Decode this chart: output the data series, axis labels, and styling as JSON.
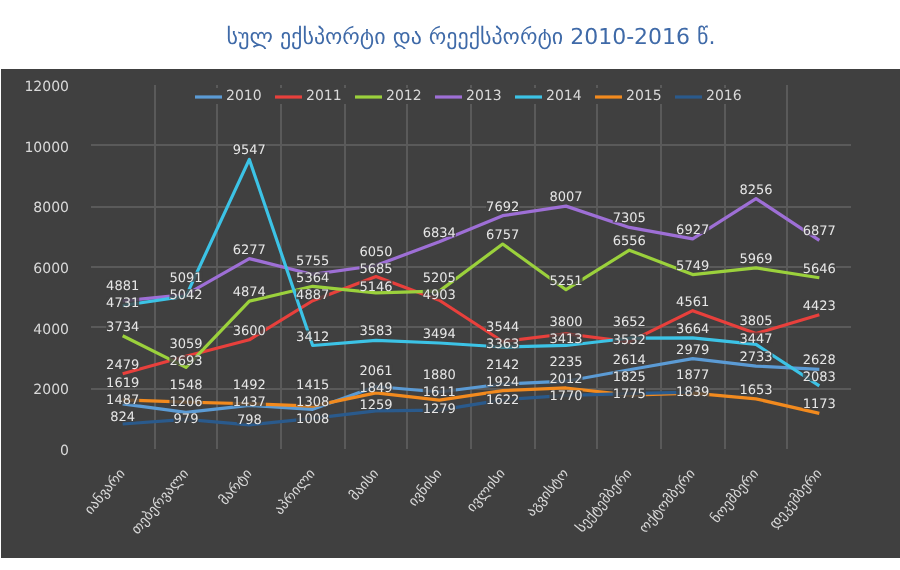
{
  "chart_data": {
    "type": "line",
    "title": "სულ ექსპორტი და რეექსპორტი 2010-2016 წ.",
    "categories": [
      "იანვარი",
      "თებერვალი",
      "მარტი",
      "აპრილი",
      "მაისი",
      "ივნისი",
      "ივლისი",
      "აგვისტო",
      "სექტემბერი",
      "ოქტომბერი",
      "ნოემბერი",
      "დეკემბერი"
    ],
    "series": [
      {
        "name": "2010",
        "color": "#5b9bd5",
        "values": [
          1487,
          1206,
          1437,
          1308,
          2061,
          1880,
          2142,
          2235,
          2614,
          2979,
          2733,
          2628
        ]
      },
      {
        "name": "2011",
        "color": "#e8403c",
        "values": [
          2479,
          3059,
          3600,
          4887,
          5685,
          4903,
          3544,
          3800,
          3532,
          4561,
          3805,
          4423
        ]
      },
      {
        "name": "2012",
        "color": "#9bd13c",
        "values": [
          3734,
          2693,
          4874,
          5364,
          5146,
          5205,
          6757,
          5251,
          6556,
          5749,
          5969,
          5646
        ]
      },
      {
        "name": "2013",
        "color": "#9e6fd6",
        "values": [
          4881,
          5091,
          6277,
          5755,
          6050,
          6834,
          7692,
          8007,
          7305,
          6927,
          8256,
          6877
        ]
      },
      {
        "name": "2014",
        "color": "#3cc3e6",
        "values": [
          4731,
          5042,
          9547,
          3412,
          3583,
          3494,
          3363,
          3413,
          3652,
          3664,
          3447,
          2083
        ]
      },
      {
        "name": "2015",
        "color": "#f28a1e",
        "values": [
          1619,
          1548,
          1492,
          1415,
          1849,
          1611,
          1924,
          2012,
          1775,
          1839,
          1653,
          1173
        ]
      },
      {
        "name": "2016",
        "color": "#2a5a8c",
        "values": [
          824,
          979,
          798,
          1008,
          1259,
          1279,
          1622,
          1770,
          1825,
          1877,
          null,
          null
        ]
      }
    ],
    "ylim": [
      0,
      12000
    ],
    "yticks": [
      0,
      2000,
      4000,
      6000,
      8000,
      10000,
      12000
    ],
    "grid": true,
    "legend": "top",
    "data_labels": true,
    "line_style": "solid"
  }
}
